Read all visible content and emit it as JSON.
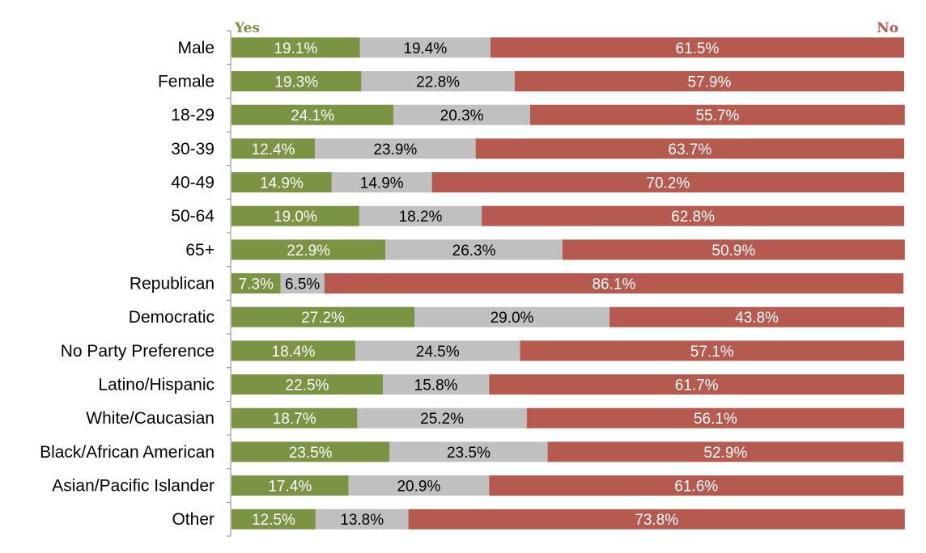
{
  "chart_data": {
    "type": "bar",
    "orientation": "horizontal",
    "stacked": true,
    "legend_labels": {
      "yes": "Yes",
      "no": "No"
    },
    "categories": [
      "Male",
      "Female",
      "18-29",
      "30-39",
      "40-49",
      "50-64",
      "65+",
      "Republican",
      "Democratic",
      "No Party Preference",
      "Latino/Hispanic",
      "White/Caucasian",
      "Black/African American",
      "Asian/Pacific Islander",
      "Other"
    ],
    "series": [
      {
        "key": "yes",
        "name": "Yes",
        "color": "#7a9444",
        "label_color": "#ffffff",
        "values": [
          19.1,
          19.3,
          24.1,
          12.4,
          14.9,
          19.0,
          22.9,
          7.3,
          27.2,
          18.4,
          22.5,
          18.7,
          23.5,
          17.4,
          12.5
        ]
      },
      {
        "key": "mid",
        "color": "#c0c0c0",
        "label_color": "#000000",
        "values": [
          19.4,
          22.8,
          20.3,
          23.9,
          14.9,
          18.2,
          26.3,
          6.5,
          29.0,
          24.5,
          15.8,
          25.2,
          23.5,
          20.9,
          13.8
        ]
      },
      {
        "key": "no",
        "name": "No",
        "color": "#b65a50",
        "label_color": "#ffffff",
        "values": [
          61.5,
          57.9,
          55.7,
          63.7,
          70.2,
          62.8,
          50.9,
          86.1,
          43.8,
          57.1,
          61.7,
          56.1,
          52.9,
          61.6,
          73.8
        ]
      }
    ],
    "value_suffix": "%",
    "xlim": [
      0,
      100
    ],
    "grid": false,
    "legend_placement": "top, Yes at left end and No at right end"
  }
}
